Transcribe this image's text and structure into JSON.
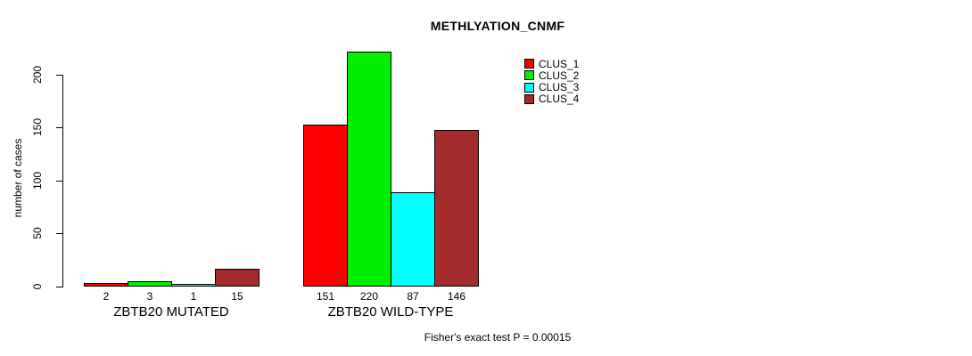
{
  "title": "METHLYATION_CNMF",
  "footer": "Fisher's exact test P = 0.00015",
  "colors": {
    "clus1": "#FF0000",
    "clus2": "#00EE00",
    "clus3": "#00FFFF",
    "clus4": "#A52A2A",
    "axis": "#000000",
    "background": "#FFFFFF"
  },
  "chart_data": {
    "type": "bar",
    "title": "METHLYATION_CNMF",
    "xlabel": "",
    "ylabel": "number of cases",
    "ylim": [
      0,
      220
    ],
    "yticks": [
      0,
      50,
      100,
      150,
      200
    ],
    "grid": false,
    "legend_position": "top-right",
    "bar_value_labels": true,
    "categories": [
      "ZBTB20 MUTATED",
      "ZBTB20 WILD-TYPE"
    ],
    "series": [
      {
        "name": "CLUS_1",
        "color": "#FF0000",
        "values": [
          2,
          151
        ]
      },
      {
        "name": "CLUS_2",
        "color": "#00EE00",
        "values": [
          3,
          220
        ]
      },
      {
        "name": "CLUS_3",
        "color": "#00FFFF",
        "values": [
          1,
          87
        ]
      },
      {
        "name": "CLUS_4",
        "color": "#A52A2A",
        "values": [
          15,
          146
        ]
      }
    ],
    "annotation": "Fisher's exact test P = 0.00015"
  }
}
